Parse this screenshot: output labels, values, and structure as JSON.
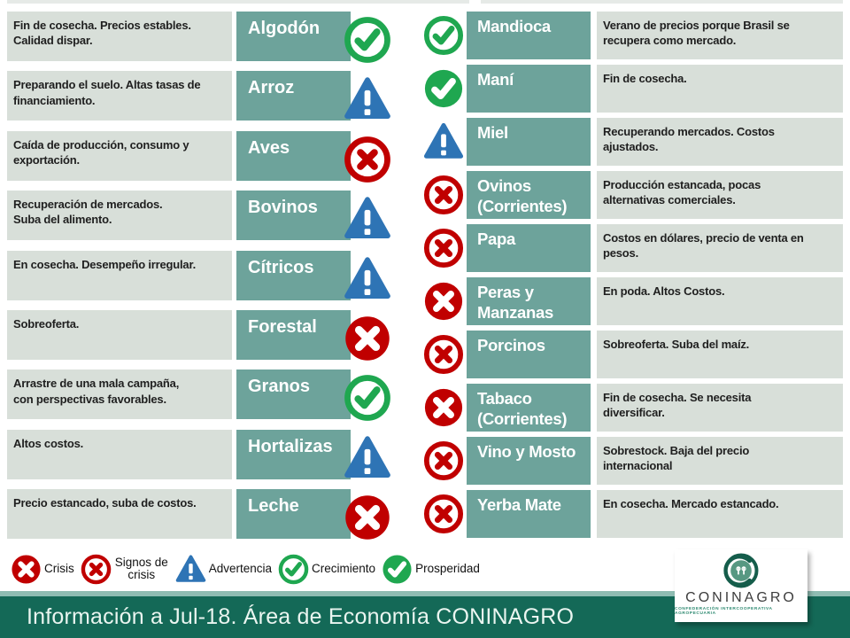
{
  "colors": {
    "teal_box": "#6da39b",
    "desc_box": "#d8dfd9",
    "footer_bar": "#146957",
    "footer_stripe": "#8fbcb2",
    "red": "#c00000",
    "green": "#1fa750",
    "green_fixed": "#1fa750",
    "blue": "#2e74b5"
  },
  "left_rows": [
    {
      "desc": "Fin de  cosecha. Precios estables.\nCalidad dispar.",
      "name": "Algodón",
      "status": "crecimiento"
    },
    {
      "desc": "Preparando el suelo. Altas tasas de\nfinanciamiento.",
      "name": "Arroz",
      "status": "advertencia"
    },
    {
      "desc": "Caída de producción, consumo y\nexportación.",
      "name": "Aves",
      "status": "signos_de_crisis"
    },
    {
      "desc": "Recuperación de mercados.\nSuba del alimento.",
      "name": "Bovinos",
      "status": "advertencia"
    },
    {
      "desc": "En cosecha. Desempeño irregular.",
      "name": "Cítricos",
      "status": "advertencia"
    },
    {
      "desc": "Sobreoferta.",
      "name": "Forestal",
      "status": "crisis"
    },
    {
      "desc": "Arrastre de una mala campaña,\ncon perspectivas favorables.",
      "name": "Granos",
      "status": "crecimiento"
    },
    {
      "desc": "Altos costos.",
      "name": "Hortalizas",
      "status": "advertencia"
    },
    {
      "desc": "Precio estancado, suba de costos.",
      "name": "Leche",
      "status": "crisis"
    }
  ],
  "right_rows": [
    {
      "name": "Mandioca",
      "status": "crecimiento",
      "desc": "Verano de precios porque Brasil se\nrecupera como mercado."
    },
    {
      "name": "Maní",
      "status": "prosperidad",
      "desc": "Fin de cosecha."
    },
    {
      "name": "Miel",
      "status": "advertencia",
      "desc": "Recuperando mercados. Costos\najustados."
    },
    {
      "name": "Ovinos (Corrientes)",
      "status": "signos_de_crisis",
      "desc": "Producción estancada, pocas\nalternativas comerciales."
    },
    {
      "name": "Papa",
      "status": "signos_de_crisis",
      "desc": "Costos en dólares, precio de venta en\npesos."
    },
    {
      "name": "Peras y Manzanas",
      "status": "crisis",
      "desc": "En poda. Altos Costos."
    },
    {
      "name": "Porcinos",
      "status": "signos_de_crisis",
      "desc": "Sobreoferta. Suba del maíz."
    },
    {
      "name": "Tabaco (Corrientes)",
      "status": "crisis",
      "desc": "Fin de cosecha. Se necesita\ndiversificar."
    },
    {
      "name": "Vino y Mosto",
      "status": "signos_de_crisis",
      "desc": "Sobrestock. Baja del  precio\ninternacional"
    },
    {
      "name": "Yerba Mate",
      "status": "signos_de_crisis",
      "desc": "En cosecha.  Mercado estancado."
    }
  ],
  "legend": [
    {
      "label": "Crisis",
      "status": "crisis",
      "icon": "crisis-icon"
    },
    {
      "label": "Signos de crisis",
      "status": "signos_de_crisis",
      "icon": "crisis-signs-icon"
    },
    {
      "label": "Advertencia",
      "status": "advertencia",
      "icon": "warning-icon"
    },
    {
      "label": "Crecimiento",
      "status": "crecimiento",
      "icon": "growth-icon"
    },
    {
      "label": "Prosperidad",
      "status": "prosperidad",
      "icon": "prosperity-icon"
    }
  ],
  "footer": {
    "text": "Información a Jul-18. Área de Economía CONINAGRO"
  },
  "logo": {
    "name": "CONINAGRO",
    "tagline": "CONFEDERACIÓN INTERCOOPERATIVA AGROPECUARIA"
  }
}
